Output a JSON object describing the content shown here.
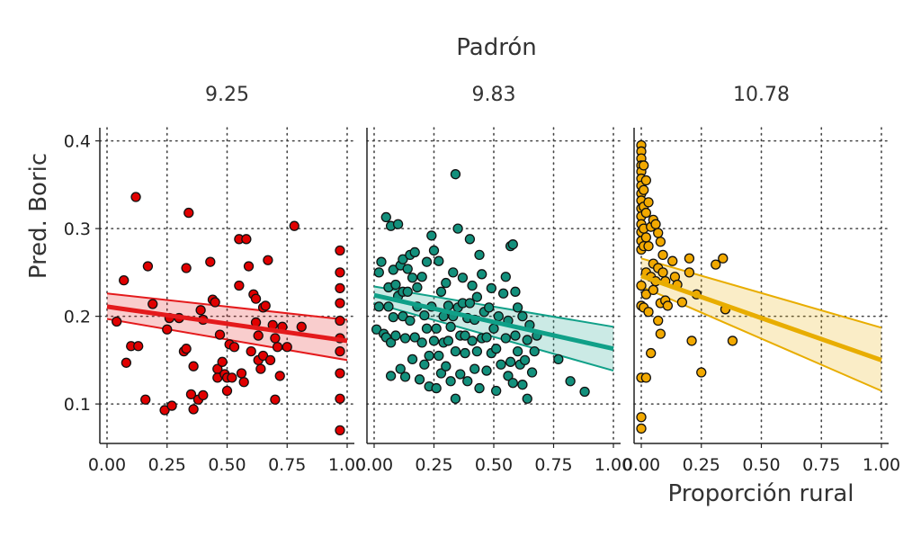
{
  "chart_data": {
    "type": "scatter",
    "title": "Padrón",
    "xlabel": "Proporción rural",
    "ylabel": "Pred. Boric",
    "xlim": [
      -0.03,
      1.03
    ],
    "ylim": [
      0.055,
      0.415
    ],
    "x_ticks": [
      0,
      0.25,
      0.5,
      0.75,
      1
    ],
    "x_tick_labels": [
      "0.00",
      "0.25",
      "0.50",
      "0.75",
      "1.00"
    ],
    "y_ticks": [
      0.1,
      0.2,
      0.3,
      0.4
    ],
    "y_tick_labels": [
      "0.1",
      "0.2",
      "0.3",
      "0.4"
    ],
    "grid": true,
    "facets": [
      {
        "label": "9.25",
        "color": "#e41a1c",
        "point_color": "#e00000",
        "band": {
          "x0": 0,
          "x1": 1,
          "fit": [
            0.211,
            0.172
          ],
          "lower": [
            0.197,
            0.15
          ],
          "upper": [
            0.226,
            0.196
          ]
        },
        "points": [
          [
            0.04,
            0.194
          ],
          [
            0.07,
            0.241
          ],
          [
            0.08,
            0.147
          ],
          [
            0.1,
            0.166
          ],
          [
            0.12,
            0.336
          ],
          [
            0.13,
            0.166
          ],
          [
            0.16,
            0.105
          ],
          [
            0.17,
            0.257
          ],
          [
            0.19,
            0.214
          ],
          [
            0.24,
            0.093
          ],
          [
            0.25,
            0.185
          ],
          [
            0.26,
            0.198
          ],
          [
            0.27,
            0.098
          ],
          [
            0.3,
            0.198
          ],
          [
            0.32,
            0.16
          ],
          [
            0.33,
            0.163
          ],
          [
            0.33,
            0.255
          ],
          [
            0.34,
            0.318
          ],
          [
            0.35,
            0.111
          ],
          [
            0.36,
            0.094
          ],
          [
            0.36,
            0.143
          ],
          [
            0.38,
            0.105
          ],
          [
            0.39,
            0.207
          ],
          [
            0.4,
            0.196
          ],
          [
            0.4,
            0.11
          ],
          [
            0.43,
            0.262
          ],
          [
            0.44,
            0.219
          ],
          [
            0.45,
            0.216
          ],
          [
            0.46,
            0.14
          ],
          [
            0.46,
            0.13
          ],
          [
            0.47,
            0.179
          ],
          [
            0.48,
            0.148
          ],
          [
            0.49,
            0.134
          ],
          [
            0.5,
            0.115
          ],
          [
            0.5,
            0.13
          ],
          [
            0.51,
            0.168
          ],
          [
            0.52,
            0.13
          ],
          [
            0.53,
            0.165
          ],
          [
            0.55,
            0.288
          ],
          [
            0.55,
            0.235
          ],
          [
            0.56,
            0.135
          ],
          [
            0.57,
            0.125
          ],
          [
            0.58,
            0.288
          ],
          [
            0.59,
            0.257
          ],
          [
            0.6,
            0.16
          ],
          [
            0.61,
            0.225
          ],
          [
            0.62,
            0.22
          ],
          [
            0.62,
            0.193
          ],
          [
            0.63,
            0.178
          ],
          [
            0.63,
            0.15
          ],
          [
            0.64,
            0.14
          ],
          [
            0.65,
            0.155
          ],
          [
            0.65,
            0.21
          ],
          [
            0.66,
            0.212
          ],
          [
            0.67,
            0.264
          ],
          [
            0.68,
            0.15
          ],
          [
            0.69,
            0.19
          ],
          [
            0.7,
            0.105
          ],
          [
            0.7,
            0.175
          ],
          [
            0.71,
            0.165
          ],
          [
            0.72,
            0.132
          ],
          [
            0.73,
            0.188
          ],
          [
            0.75,
            0.165
          ],
          [
            0.78,
            0.303
          ],
          [
            0.81,
            0.188
          ],
          [
            0.97,
            0.275
          ],
          [
            0.97,
            0.25
          ],
          [
            0.97,
            0.232
          ],
          [
            0.97,
            0.215
          ],
          [
            0.97,
            0.195
          ],
          [
            0.97,
            0.175
          ],
          [
            0.97,
            0.16
          ],
          [
            0.97,
            0.135
          ],
          [
            0.97,
            0.106
          ],
          [
            0.97,
            0.07
          ]
        ]
      },
      {
        "label": "9.83",
        "color": "#10a088",
        "point_color": "#13907c",
        "band": {
          "x0": 0,
          "x1": 1,
          "fit": [
            0.224,
            0.163
          ],
          "lower": [
            0.215,
            0.138
          ],
          "upper": [
            0.234,
            0.188
          ]
        },
        "points": [
          [
            0.01,
            0.185
          ],
          [
            0.02,
            0.211
          ],
          [
            0.02,
            0.25
          ],
          [
            0.03,
            0.262
          ],
          [
            0.04,
            0.18
          ],
          [
            0.05,
            0.176
          ],
          [
            0.05,
            0.313
          ],
          [
            0.06,
            0.211
          ],
          [
            0.06,
            0.233
          ],
          [
            0.07,
            0.17
          ],
          [
            0.07,
            0.132
          ],
          [
            0.07,
            0.303
          ],
          [
            0.08,
            0.253
          ],
          [
            0.08,
            0.199
          ],
          [
            0.09,
            0.236
          ],
          [
            0.09,
            0.178
          ],
          [
            0.1,
            0.223
          ],
          [
            0.1,
            0.305
          ],
          [
            0.11,
            0.258
          ],
          [
            0.11,
            0.14
          ],
          [
            0.12,
            0.265
          ],
          [
            0.12,
            0.228
          ],
          [
            0.12,
            0.2
          ],
          [
            0.13,
            0.175
          ],
          [
            0.13,
            0.131
          ],
          [
            0.14,
            0.254
          ],
          [
            0.14,
            0.228
          ],
          [
            0.15,
            0.27
          ],
          [
            0.15,
            0.195
          ],
          [
            0.16,
            0.151
          ],
          [
            0.16,
            0.244
          ],
          [
            0.17,
            0.273
          ],
          [
            0.17,
            0.176
          ],
          [
            0.18,
            0.233
          ],
          [
            0.18,
            0.211
          ],
          [
            0.19,
            0.128
          ],
          [
            0.2,
            0.245
          ],
          [
            0.2,
            0.17
          ],
          [
            0.21,
            0.201
          ],
          [
            0.21,
            0.145
          ],
          [
            0.22,
            0.262
          ],
          [
            0.22,
            0.186
          ],
          [
            0.23,
            0.155
          ],
          [
            0.23,
            0.12
          ],
          [
            0.24,
            0.292
          ],
          [
            0.24,
            0.211
          ],
          [
            0.25,
            0.172
          ],
          [
            0.25,
            0.275
          ],
          [
            0.26,
            0.118
          ],
          [
            0.26,
            0.186
          ],
          [
            0.27,
            0.263
          ],
          [
            0.27,
            0.155
          ],
          [
            0.28,
            0.135
          ],
          [
            0.28,
            0.228
          ],
          [
            0.29,
            0.17
          ],
          [
            0.29,
            0.2
          ],
          [
            0.3,
            0.238
          ],
          [
            0.3,
            0.143
          ],
          [
            0.31,
            0.212
          ],
          [
            0.31,
            0.172
          ],
          [
            0.32,
            0.188
          ],
          [
            0.32,
            0.126
          ],
          [
            0.33,
            0.25
          ],
          [
            0.33,
            0.2
          ],
          [
            0.34,
            0.362
          ],
          [
            0.34,
            0.16
          ],
          [
            0.34,
            0.106
          ],
          [
            0.35,
            0.3
          ],
          [
            0.35,
            0.21
          ],
          [
            0.36,
            0.178
          ],
          [
            0.36,
            0.134
          ],
          [
            0.37,
            0.215
          ],
          [
            0.37,
            0.244
          ],
          [
            0.38,
            0.158
          ],
          [
            0.38,
            0.178
          ],
          [
            0.39,
            0.198
          ],
          [
            0.39,
            0.126
          ],
          [
            0.4,
            0.288
          ],
          [
            0.4,
            0.215
          ],
          [
            0.41,
            0.172
          ],
          [
            0.41,
            0.235
          ],
          [
            0.42,
            0.14
          ],
          [
            0.42,
            0.196
          ],
          [
            0.43,
            0.16
          ],
          [
            0.43,
            0.222
          ],
          [
            0.44,
            0.27
          ],
          [
            0.44,
            0.118
          ],
          [
            0.45,
            0.175
          ],
          [
            0.45,
            0.248
          ],
          [
            0.46,
            0.205
          ],
          [
            0.47,
            0.138
          ],
          [
            0.47,
            0.176
          ],
          [
            0.48,
            0.21
          ],
          [
            0.49,
            0.158
          ],
          [
            0.49,
            0.232
          ],
          [
            0.5,
            0.186
          ],
          [
            0.51,
            0.115
          ],
          [
            0.51,
            0.163
          ],
          [
            0.52,
            0.2
          ],
          [
            0.53,
            0.145
          ],
          [
            0.54,
            0.226
          ],
          [
            0.55,
            0.175
          ],
          [
            0.55,
            0.245
          ],
          [
            0.56,
            0.132
          ],
          [
            0.56,
            0.195
          ],
          [
            0.57,
            0.28
          ],
          [
            0.57,
            0.148
          ],
          [
            0.58,
            0.282
          ],
          [
            0.58,
            0.124
          ],
          [
            0.59,
            0.178
          ],
          [
            0.59,
            0.228
          ],
          [
            0.6,
            0.21
          ],
          [
            0.6,
            0.16
          ],
          [
            0.61,
            0.145
          ],
          [
            0.62,
            0.2
          ],
          [
            0.62,
            0.122
          ],
          [
            0.63,
            0.15
          ],
          [
            0.64,
            0.173
          ],
          [
            0.64,
            0.106
          ],
          [
            0.65,
            0.19
          ],
          [
            0.66,
            0.136
          ],
          [
            0.67,
            0.16
          ],
          [
            0.68,
            0.178
          ],
          [
            0.77,
            0.151
          ],
          [
            0.82,
            0.126
          ],
          [
            0.88,
            0.114
          ]
        ]
      },
      {
        "label": "10.78",
        "color": "#e8ad00",
        "point_color": "#f2a900",
        "band": {
          "x0": 0,
          "x1": 1,
          "fit": [
            0.246,
            0.15
          ],
          "lower": [
            0.234,
            0.115
          ],
          "upper": [
            0.266,
            0.187
          ]
        },
        "points": [
          [
            0.0,
            0.395
          ],
          [
            0.0,
            0.388
          ],
          [
            0.0,
            0.38
          ],
          [
            0.0,
            0.372
          ],
          [
            0.0,
            0.365
          ],
          [
            0.0,
            0.357
          ],
          [
            0.0,
            0.349
          ],
          [
            0.0,
            0.34
          ],
          [
            0.0,
            0.332
          ],
          [
            0.0,
            0.323
          ],
          [
            0.0,
            0.314
          ],
          [
            0.0,
            0.305
          ],
          [
            0.0,
            0.296
          ],
          [
            0.0,
            0.286
          ],
          [
            0.0,
            0.276
          ],
          [
            0.0,
            0.235
          ],
          [
            0.0,
            0.212
          ],
          [
            0.0,
            0.13
          ],
          [
            0.0,
            0.085
          ],
          [
            0.0,
            0.072
          ],
          [
            0.01,
            0.372
          ],
          [
            0.01,
            0.344
          ],
          [
            0.01,
            0.325
          ],
          [
            0.01,
            0.3
          ],
          [
            0.01,
            0.28
          ],
          [
            0.01,
            0.21
          ],
          [
            0.02,
            0.355
          ],
          [
            0.02,
            0.318
          ],
          [
            0.02,
            0.29
          ],
          [
            0.02,
            0.25
          ],
          [
            0.02,
            0.225
          ],
          [
            0.02,
            0.13
          ],
          [
            0.03,
            0.33
          ],
          [
            0.03,
            0.28
          ],
          [
            0.03,
            0.205
          ],
          [
            0.04,
            0.302
          ],
          [
            0.04,
            0.245
          ],
          [
            0.04,
            0.158
          ],
          [
            0.05,
            0.31
          ],
          [
            0.05,
            0.26
          ],
          [
            0.05,
            0.23
          ],
          [
            0.06,
            0.305
          ],
          [
            0.06,
            0.24
          ],
          [
            0.07,
            0.295
          ],
          [
            0.07,
            0.255
          ],
          [
            0.07,
            0.195
          ],
          [
            0.08,
            0.285
          ],
          [
            0.08,
            0.215
          ],
          [
            0.08,
            0.18
          ],
          [
            0.09,
            0.27
          ],
          [
            0.09,
            0.25
          ],
          [
            0.1,
            0.24
          ],
          [
            0.1,
            0.218
          ],
          [
            0.11,
            0.212
          ],
          [
            0.13,
            0.263
          ],
          [
            0.14,
            0.245
          ],
          [
            0.15,
            0.236
          ],
          [
            0.17,
            0.216
          ],
          [
            0.2,
            0.266
          ],
          [
            0.2,
            0.25
          ],
          [
            0.21,
            0.172
          ],
          [
            0.23,
            0.225
          ],
          [
            0.25,
            0.136
          ],
          [
            0.31,
            0.259
          ],
          [
            0.34,
            0.266
          ],
          [
            0.35,
            0.208
          ],
          [
            0.38,
            0.172
          ]
        ]
      }
    ]
  }
}
